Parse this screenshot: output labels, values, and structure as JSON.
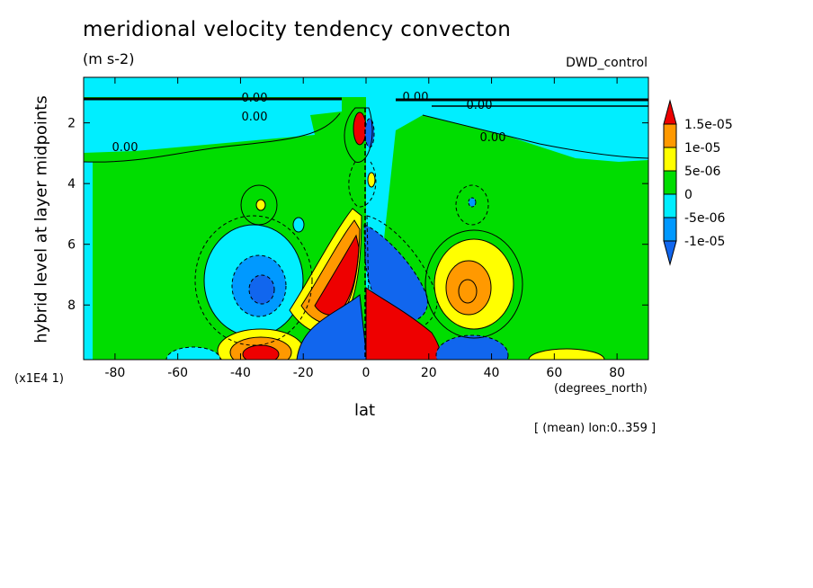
{
  "chart_data": {
    "type": "heatmap",
    "title": "meridional velocity tendency convecton",
    "units": "(m s-2)",
    "experiment": "DWD_control",
    "xlabel": "lat",
    "x_units": "(degrees_north)",
    "ylabel": "hybrid level at layer midpoints",
    "y_scale_note": "(x1E4 1)",
    "footnote": "[ (mean) lon:0..359 ]",
    "xlim": [
      -90,
      90
    ],
    "ylim": [
      0.5,
      9.8
    ],
    "y_inverted": true,
    "x_ticks": [
      -80,
      -60,
      -40,
      -20,
      0,
      20,
      40,
      60,
      80
    ],
    "x_tick_labels": [
      "-80",
      "-60",
      "-40",
      "-20",
      "0",
      "20",
      "40",
      "60",
      "80"
    ],
    "y_ticks": [
      2,
      4,
      6,
      8
    ],
    "y_tick_labels": [
      "2",
      "4",
      "6",
      "8"
    ],
    "colorbar": {
      "labels": [
        "1.5e-05",
        "1e-05",
        "5e-06",
        "0",
        "-5e-06",
        "-1e-05"
      ],
      "boundaries": [
        1.5e-05,
        1e-05,
        5e-06,
        0,
        -5e-06,
        -1e-05
      ],
      "colors": [
        "#ee0000",
        "#ff9900",
        "#ffff00",
        "#00dd00",
        "#00eeff",
        "#0099ff",
        "#1166ee"
      ]
    },
    "contour_labels": [
      "0.00",
      "0.00",
      "0.00",
      "0.00",
      "0.00",
      "0.00"
    ],
    "features": [
      {
        "lat": -33,
        "level": 9.2,
        "sign": "positive"
      },
      {
        "lat": -34,
        "level": 7.6,
        "sign": "negative"
      },
      {
        "lat": -8,
        "level": 7.8,
        "sign": "positive"
      },
      {
        "lat": 12,
        "level": 9.0,
        "sign": "positive"
      },
      {
        "lat": -4,
        "level": 9.0,
        "sign": "negative"
      },
      {
        "lat": 8,
        "level": 7.6,
        "sign": "negative"
      },
      {
        "lat": 32,
        "level": 7.7,
        "sign": "positive"
      },
      {
        "lat": 34,
        "level": 9.4,
        "sign": "negative"
      },
      {
        "lat": -3,
        "level": 2.0,
        "sign": "positive"
      },
      {
        "lat": 65,
        "level": 9.6,
        "sign": "positive"
      }
    ]
  }
}
